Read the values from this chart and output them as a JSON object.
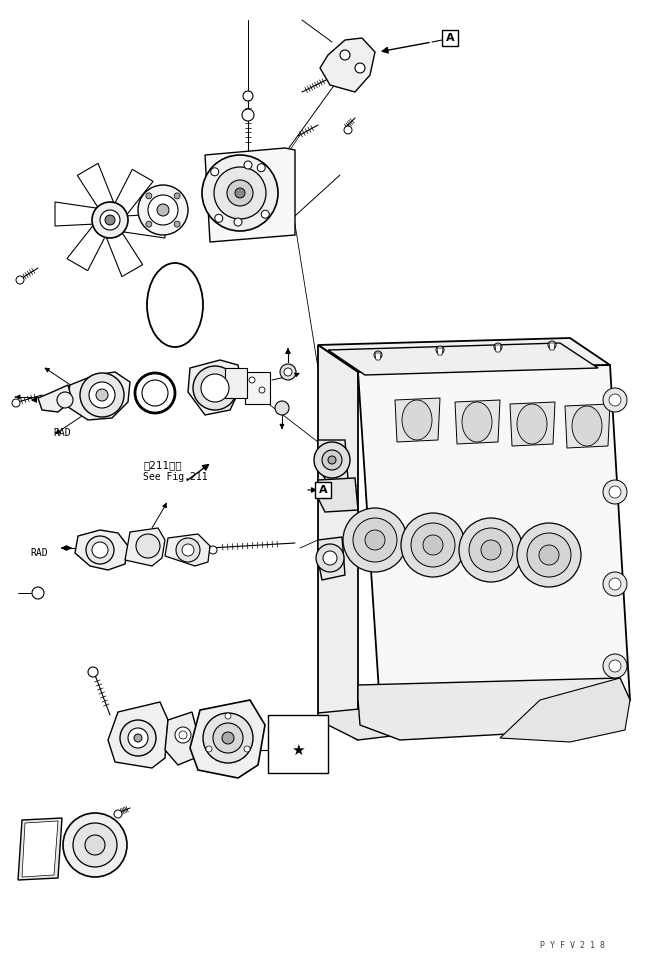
{
  "background_color": "#ffffff",
  "fig_width": 6.46,
  "fig_height": 9.58,
  "dpi": 100,
  "page_code": "P Y F V 2 1 8",
  "label_RAD_1": "RAD",
  "label_RAD_2": "RAD",
  "label_see_fig": "See Fig.211",
  "label_fig_ref": "第211图参",
  "line_color": "#000000",
  "line_width": 0.8,
  "text_color": "#000000"
}
